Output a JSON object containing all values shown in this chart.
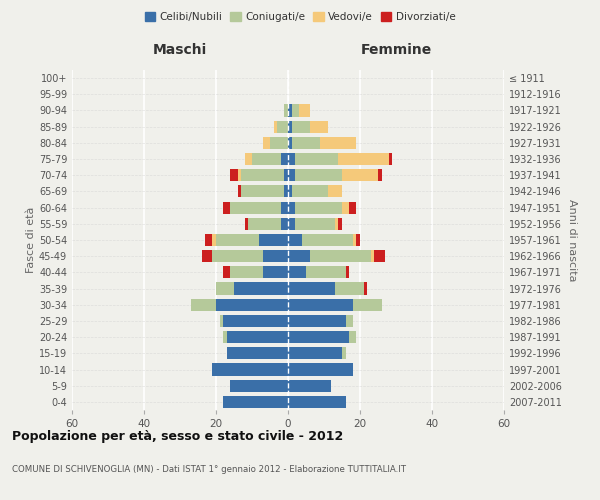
{
  "age_groups": [
    "0-4",
    "5-9",
    "10-14",
    "15-19",
    "20-24",
    "25-29",
    "30-34",
    "35-39",
    "40-44",
    "45-49",
    "50-54",
    "55-59",
    "60-64",
    "65-69",
    "70-74",
    "75-79",
    "80-84",
    "85-89",
    "90-94",
    "95-99",
    "100+"
  ],
  "birth_years": [
    "2007-2011",
    "2002-2006",
    "1997-2001",
    "1992-1996",
    "1987-1991",
    "1982-1986",
    "1977-1981",
    "1972-1976",
    "1967-1971",
    "1962-1966",
    "1957-1961",
    "1952-1956",
    "1947-1951",
    "1942-1946",
    "1937-1941",
    "1932-1936",
    "1927-1931",
    "1922-1926",
    "1917-1921",
    "1912-1916",
    "≤ 1911"
  ],
  "male": {
    "celibi": [
      18,
      16,
      21,
      17,
      17,
      18,
      20,
      15,
      7,
      7,
      8,
      2,
      2,
      1,
      1,
      2,
      0,
      0,
      0,
      0,
      0
    ],
    "coniugati": [
      0,
      0,
      0,
      0,
      1,
      1,
      7,
      5,
      9,
      14,
      12,
      9,
      14,
      12,
      12,
      8,
      5,
      3,
      1,
      0,
      0
    ],
    "vedovi": [
      0,
      0,
      0,
      0,
      0,
      0,
      0,
      0,
      0,
      0,
      1,
      0,
      0,
      0,
      1,
      2,
      2,
      1,
      0,
      0,
      0
    ],
    "divorziati": [
      0,
      0,
      0,
      0,
      0,
      0,
      0,
      0,
      2,
      3,
      2,
      1,
      2,
      1,
      2,
      0,
      0,
      0,
      0,
      0,
      0
    ]
  },
  "female": {
    "nubili": [
      16,
      12,
      18,
      15,
      17,
      16,
      18,
      13,
      5,
      6,
      4,
      2,
      2,
      1,
      2,
      2,
      1,
      1,
      1,
      0,
      0
    ],
    "coniugate": [
      0,
      0,
      0,
      1,
      2,
      2,
      8,
      8,
      11,
      17,
      14,
      11,
      13,
      10,
      13,
      12,
      8,
      5,
      2,
      0,
      0
    ],
    "vedove": [
      0,
      0,
      0,
      0,
      0,
      0,
      0,
      0,
      0,
      1,
      1,
      1,
      2,
      4,
      10,
      14,
      10,
      5,
      3,
      0,
      0
    ],
    "divorziate": [
      0,
      0,
      0,
      0,
      0,
      0,
      0,
      1,
      1,
      3,
      1,
      1,
      2,
      0,
      1,
      1,
      0,
      0,
      0,
      0,
      0
    ]
  },
  "colors": {
    "celibi": "#3a6fa8",
    "coniugati": "#b5c99a",
    "vedovi": "#f5c97a",
    "divorziati": "#cc1f1f"
  },
  "legend_labels": [
    "Celibi/Nubili",
    "Coniugati/e",
    "Vedovi/e",
    "Divorziati/e"
  ],
  "xlim": 60,
  "title": "Popolazione per età, sesso e stato civile - 2012",
  "subtitle": "COMUNE DI SCHIVENOGLIA (MN) - Dati ISTAT 1° gennaio 2012 - Elaborazione TUTTITALIA.IT",
  "label_maschi": "Maschi",
  "label_femmine": "Femmine",
  "ylabel_left": "Fasce di età",
  "ylabel_right": "Anni di nascita",
  "bg_color": "#f0f0eb"
}
